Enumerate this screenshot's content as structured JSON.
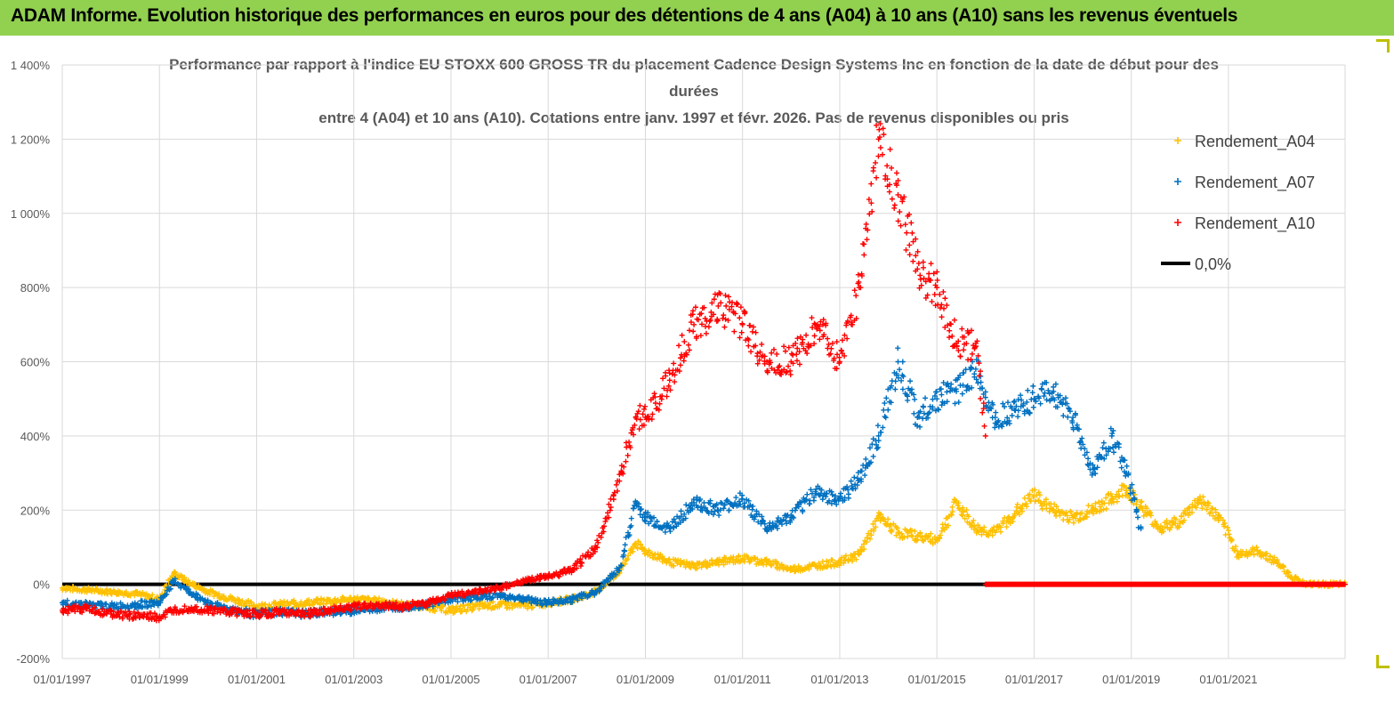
{
  "banner": {
    "title": "ADAM Informe. Evolution historique des performances en euros pour des détentions de 4 ans (A04) à 10 ans (A10) sans les revenus éventuels",
    "color": "#92d050"
  },
  "chart_data": {
    "type": "scatter",
    "title_lines": [
      "Performance par rapport à l'indice EU STOXX 600 GROSS TR  du placement Cadence Design Systems Inc en fonction de la date de début pour des",
      "durées",
      "entre 4 (A04) et 10 ans (A10).  Cotations entre janv. 1997 et févr.  2026. Pas de revenus disponibles ou pris"
    ],
    "y_ticks": [
      "1 400%",
      "1 200%",
      "1 000%",
      "800%",
      "600%",
      "400%",
      "200%",
      "0%",
      "-200%"
    ],
    "x_ticks": [
      "01/01/1997",
      "01/01/1999",
      "01/01/2001",
      "01/01/2003",
      "01/01/2005",
      "01/01/2007",
      "01/01/2009",
      "01/01/2011",
      "01/01/2013",
      "01/01/2015",
      "01/01/2017",
      "01/01/2019",
      "01/01/2021"
    ],
    "ylim": [
      -200,
      1400
    ],
    "xlim": [
      1997.0,
      2023.4
    ],
    "grid": true,
    "legend_position": "top-right",
    "series": [
      {
        "name": "Rendement_A04",
        "color": "#ffc000",
        "x": [
          1997.0,
          1997.5,
          1998.0,
          1998.5,
          1999.0,
          1999.3,
          1999.6,
          2000.0,
          2000.5,
          2001.0,
          2001.5,
          2002.0,
          2002.5,
          2003.0,
          2003.5,
          2004.0,
          2004.5,
          2005.0,
          2005.5,
          2006.0,
          2006.5,
          2007.0,
          2007.5,
          2008.0,
          2008.5,
          2008.8,
          2009.0,
          2009.5,
          2010.0,
          2010.5,
          2011.0,
          2011.5,
          2012.0,
          2012.5,
          2013.0,
          2013.4,
          2013.8,
          2014.2,
          2014.6,
          2015.0,
          2015.4,
          2015.8,
          2016.2,
          2016.6,
          2017.0,
          2017.4,
          2017.8,
          2018.2,
          2018.6,
          2018.9,
          2019.2,
          2019.6,
          2020.0,
          2020.4,
          2020.8,
          2021.2,
          2021.6,
          2022.0,
          2022.3,
          2022.6,
          2023.0,
          2023.4
        ],
        "y": [
          -10,
          -15,
          -20,
          -25,
          -40,
          30,
          5,
          -20,
          -40,
          -60,
          -55,
          -50,
          -45,
          -40,
          -45,
          -55,
          -60,
          -70,
          -60,
          -55,
          -58,
          -50,
          -40,
          -20,
          40,
          110,
          90,
          60,
          50,
          60,
          70,
          60,
          40,
          50,
          60,
          80,
          180,
          140,
          130,
          120,
          220,
          150,
          140,
          190,
          240,
          200,
          180,
          200,
          230,
          260,
          210,
          150,
          170,
          230,
          180,
          80,
          90,
          60,
          20,
          0,
          0,
          0
        ]
      },
      {
        "name": "Rendement_A07",
        "color": "#0070c0",
        "x": [
          1997.0,
          1997.5,
          1998.0,
          1998.5,
          1999.0,
          1999.3,
          1999.6,
          2000.0,
          2000.5,
          2001.0,
          2001.5,
          2002.0,
          2002.5,
          2003.0,
          2003.5,
          2004.0,
          2004.5,
          2005.0,
          2005.5,
          2006.0,
          2006.5,
          2007.0,
          2007.5,
          2008.0,
          2008.5,
          2008.8,
          2009.0,
          2009.5,
          2010.0,
          2010.5,
          2011.0,
          2011.5,
          2012.0,
          2012.5,
          2013.0,
          2013.4,
          2013.8,
          2014.2,
          2014.6,
          2015.0,
          2015.4,
          2015.8,
          2016.2,
          2016.6,
          2017.0,
          2017.4,
          2017.8,
          2018.2,
          2018.6,
          2018.9,
          2019.2
        ],
        "y": [
          -50,
          -55,
          -60,
          -55,
          -50,
          10,
          -20,
          -50,
          -70,
          -80,
          -75,
          -80,
          -75,
          -70,
          -65,
          -60,
          -55,
          -40,
          -35,
          -30,
          -40,
          -50,
          -40,
          -20,
          50,
          220,
          180,
          150,
          220,
          200,
          230,
          150,
          180,
          250,
          230,
          280,
          400,
          600,
          450,
          500,
          520,
          580,
          450,
          470,
          500,
          520,
          450,
          300,
          400,
          300,
          150
        ]
      },
      {
        "name": "Rendement_A10",
        "color": "#ff0000",
        "x": [
          1997.0,
          1997.5,
          1998.0,
          1998.5,
          1999.0,
          1999.3,
          1999.6,
          2000.0,
          2000.5,
          2001.0,
          2001.5,
          2002.0,
          2002.5,
          2003.0,
          2003.5,
          2004.0,
          2004.5,
          2005.0,
          2005.5,
          2006.0,
          2006.5,
          2007.0,
          2007.5,
          2008.0,
          2008.5,
          2008.8,
          2009.0,
          2009.5,
          2010.0,
          2010.5,
          2011.0,
          2011.5,
          2012.0,
          2012.5,
          2013.0,
          2013.4,
          2013.8,
          2014.2,
          2014.6,
          2015.0,
          2015.4,
          2015.8,
          2016.0
        ],
        "y": [
          -70,
          -65,
          -80,
          -85,
          -90,
          -70,
          -65,
          -70,
          -75,
          -80,
          -75,
          -80,
          -70,
          -60,
          -55,
          -60,
          -50,
          -30,
          -20,
          -10,
          10,
          20,
          40,
          100,
          300,
          450,
          450,
          550,
          700,
          750,
          700,
          600,
          600,
          700,
          600,
          800,
          1200,
          1050,
          850,
          800,
          650,
          650,
          400
        ]
      },
      {
        "name": "0,0%",
        "color": "#000000",
        "x": [
          1997.0,
          2016.0
        ],
        "y": [
          0,
          0
        ]
      }
    ]
  }
}
